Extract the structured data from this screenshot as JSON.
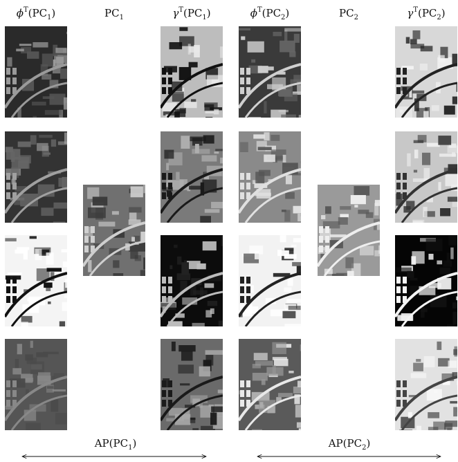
{
  "headers": [
    {
      "symbol": "ϕ",
      "sup": "T",
      "open": "(PC",
      "sub": "1",
      "close": ")"
    },
    {
      "open": "PC",
      "sub": "1"
    },
    {
      "symbol": "γ",
      "sup": "T",
      "open": "(PC",
      "sub": "1",
      "close": ")"
    },
    {
      "symbol": "ϕ",
      "sup": "T",
      "open": "(PC",
      "sub": "2",
      "close": ")"
    },
    {
      "open": "PC",
      "sub": "2"
    },
    {
      "symbol": "γ",
      "sup": "T",
      "open": "(PC",
      "sub": "2",
      "close": ")"
    }
  ],
  "footers": [
    {
      "open": "AP(PC",
      "sub": "1",
      "close": ")"
    },
    {
      "open": "AP(PC",
      "sub": "2",
      "close": ")"
    }
  ]
}
